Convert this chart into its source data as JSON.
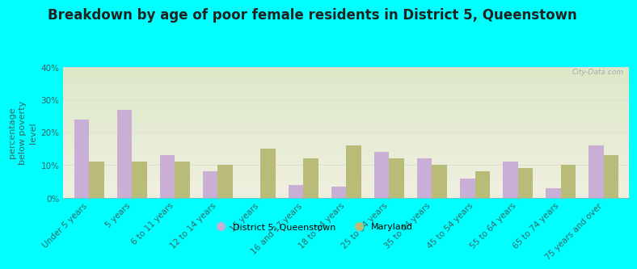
{
  "title": "Breakdown by age of poor female residents in District 5, Queenstown",
  "ylabel": "percentage\nbelow poverty\nlevel",
  "categories": [
    "Under 5 years",
    "5 years",
    "6 to 11 years",
    "12 to 14 years",
    "15 years",
    "16 and 17 years",
    "18 to 24 years",
    "25 to 34 years",
    "35 to 44 years",
    "45 to 54 years",
    "55 to 64 years",
    "65 to 74 years",
    "75 years and over"
  ],
  "district_values": [
    24.0,
    27.0,
    13.0,
    8.0,
    0.0,
    4.0,
    3.5,
    14.0,
    12.0,
    6.0,
    11.0,
    3.0,
    16.0
  ],
  "maryland_values": [
    11.0,
    11.0,
    11.0,
    10.0,
    15.0,
    12.0,
    16.0,
    12.0,
    10.0,
    8.0,
    9.0,
    10.0,
    13.0
  ],
  "district_color": "#c9aed6",
  "maryland_color": "#b8bc78",
  "background_color": "#00ffff",
  "plot_bg_top": "#dce8c8",
  "plot_bg_bottom": "#f0f0e0",
  "ylim": [
    0,
    40
  ],
  "yticks": [
    0,
    10,
    20,
    30,
    40
  ],
  "ytick_labels": [
    "0%",
    "10%",
    "20%",
    "30%",
    "40%"
  ],
  "legend_labels": [
    "District 5, Queenstown",
    "Maryland"
  ],
  "title_fontsize": 12,
  "label_fontsize": 8,
  "tick_fontsize": 7.5,
  "bar_width": 0.35,
  "watermark": "City-Data.com",
  "text_color": "#336666"
}
